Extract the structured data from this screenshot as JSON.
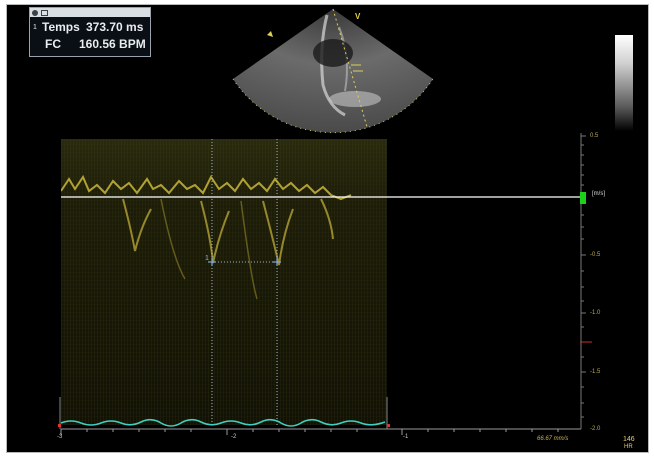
{
  "measurement_box": {
    "row1": {
      "index": "1",
      "label": "Temps",
      "value": "373.70 ms"
    },
    "row2": {
      "label": "FC",
      "value": "160.56 BPM"
    }
  },
  "echo_marker": "V",
  "velocity_scale": {
    "unit": "[m/s]",
    "ticks": [
      "0.5",
      "-0.5",
      "-1.0",
      "-1.5",
      "-2.0"
    ]
  },
  "time_axis": {
    "ticks": [
      "-3",
      "-2",
      "-1"
    ]
  },
  "cursor_label": "1",
  "sweep_speed": "66.67 mm/s",
  "heart_rate": {
    "value": "146",
    "label": "HR"
  },
  "colors": {
    "baseline": "#ffffff",
    "doppler": "#d6c23a",
    "ecg": "#3fd0c0",
    "cursor": "#7fa8d8",
    "marker": "#19d219"
  }
}
